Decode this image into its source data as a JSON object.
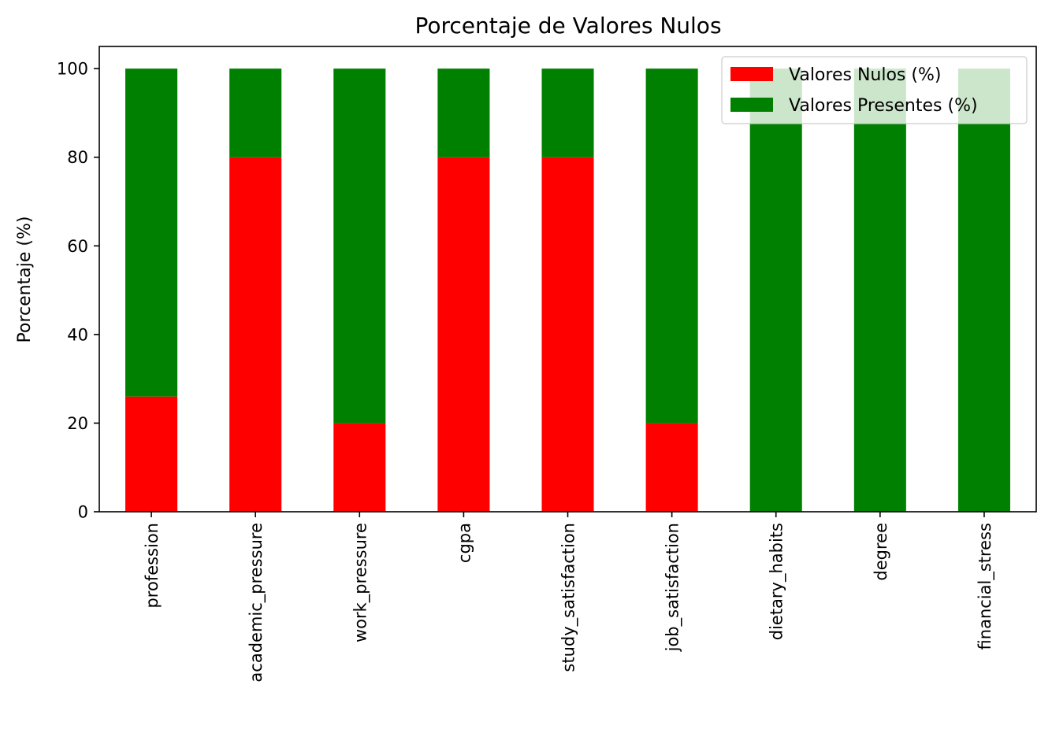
{
  "chart_data": {
    "type": "bar",
    "stacked": true,
    "title": "Porcentaje de Valores Nulos",
    "xlabel": "",
    "ylabel": "Porcentaje (%)",
    "ylim": [
      0,
      105
    ],
    "yticks": [
      "0",
      "20",
      "40",
      "60",
      "80",
      "100"
    ],
    "categories": [
      "profession",
      "academic_pressure",
      "work_pressure",
      "cgpa",
      "study_satisfaction",
      "job_satisfaction",
      "dietary_habits",
      "degree",
      "financial_stress"
    ],
    "series": [
      {
        "name": "Valores Nulos (%)",
        "color": "#ff0000",
        "values": [
          26,
          80,
          20,
          80,
          80,
          20,
          0,
          0,
          0
        ]
      },
      {
        "name": "Valores Presentes (%)",
        "color": "#008000",
        "values": [
          74,
          20,
          80,
          20,
          20,
          80,
          100,
          100,
          100
        ]
      }
    ],
    "grid": false,
    "legend_position": "top-right"
  }
}
